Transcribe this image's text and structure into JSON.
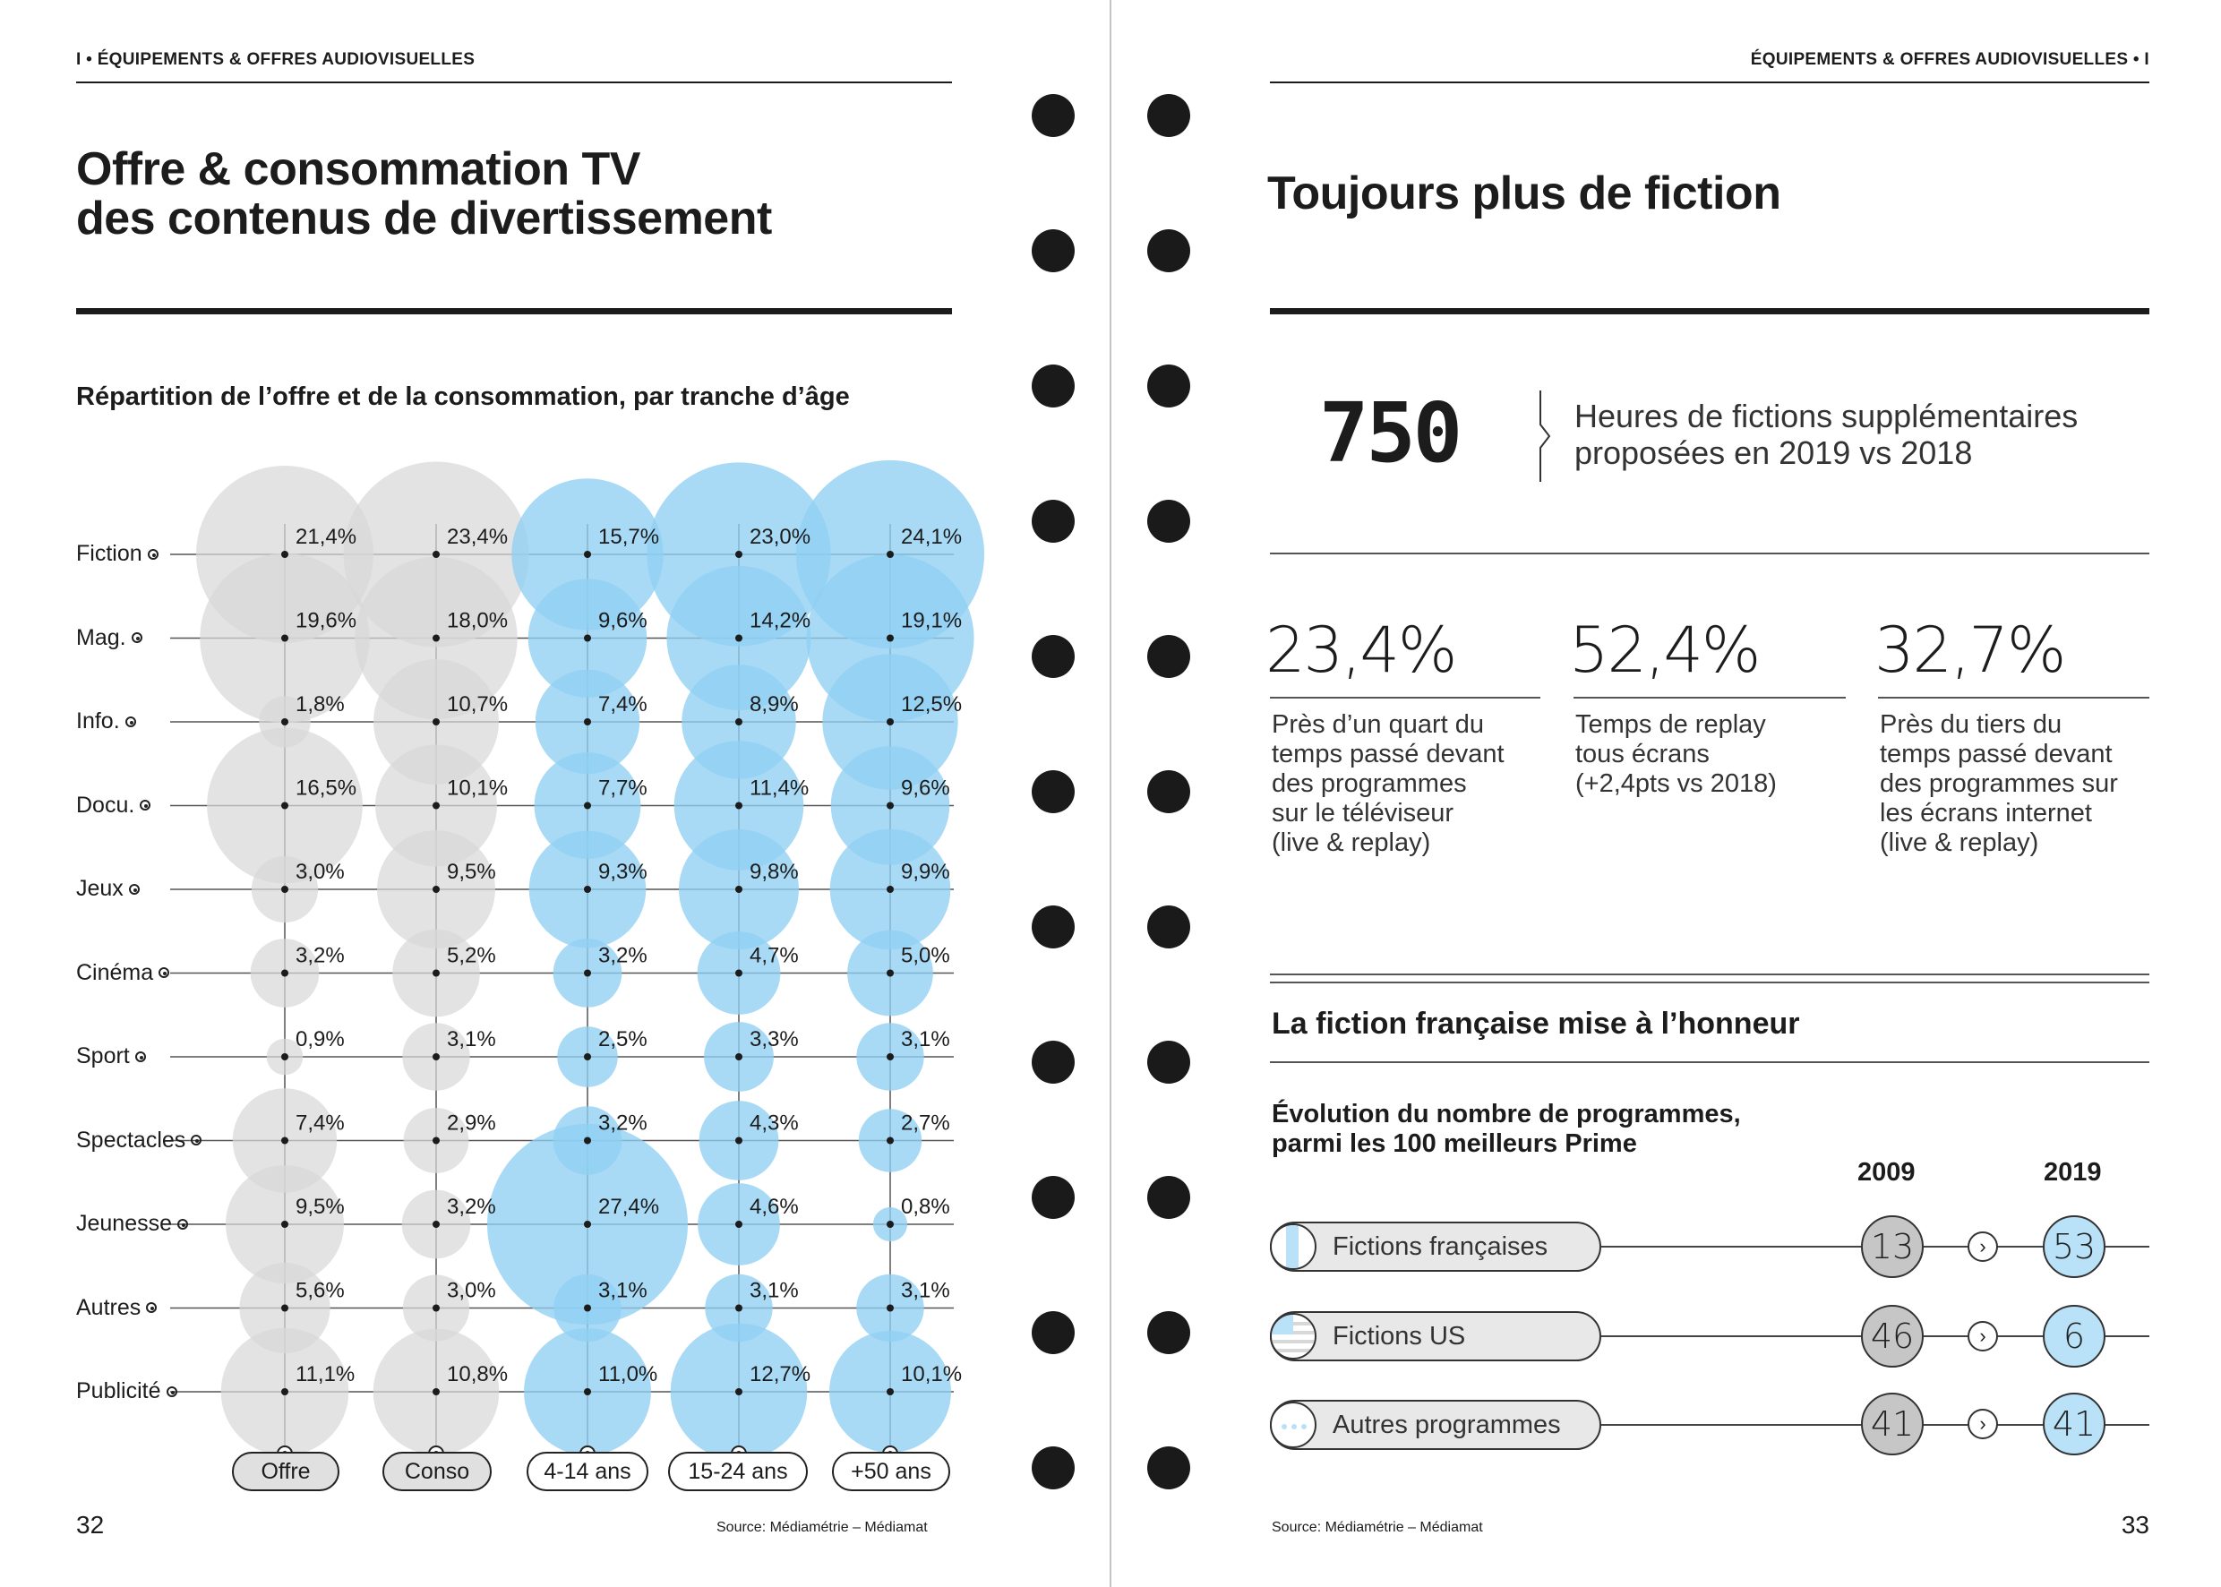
{
  "left_page": {
    "header": "I • ÉQUIPEMENTS & OFFRES AUDIOVISUELLES",
    "title_line1": "Offre & consommation TV",
    "title_line2": "des contenus de divertissement",
    "chart_title": "Répartition de l’offre et de la consommation, par tranche d’âge",
    "page_number": "32",
    "source": "Source: Médiamétrie – Médiamat"
  },
  "right_page": {
    "header": "ÉQUIPEMENTS & OFFRES AUDIOVISUELLES • I",
    "title": "Toujours plus de fiction",
    "big_number": "750",
    "big_text_line1": "Heures de fictions supplémentaires",
    "big_text_line2": "proposées en 2019 vs 2018",
    "stats": [
      {
        "value": "23,4%",
        "lines": [
          "Près d’un quart du",
          "temps passé devant",
          "des programmes",
          "sur le téléviseur",
          "(live & replay)"
        ]
      },
      {
        "value": "52,4%",
        "lines": [
          "Temps de replay",
          "tous écrans",
          "(+2,4pts vs 2018)"
        ]
      },
      {
        "value": "32,7%",
        "lines": [
          "Près du tiers du",
          "temps passé devant",
          "des programmes sur",
          "les écrans internet",
          "(live & replay)"
        ]
      }
    ],
    "section_title": "La fiction française mise à l’honneur",
    "evolution_title_line1": "Évolution du nombre de programmes,",
    "evolution_title_line2": "parmi les 100 meilleurs Prime",
    "year_a": "2009",
    "year_b": "2019",
    "programs": [
      {
        "label": "Fictions françaises",
        "v2009": "13",
        "v2019": "53",
        "icon": "french-flag-icon"
      },
      {
        "label": "Fictions US",
        "v2009": "46",
        "v2019": "6",
        "icon": "us-flag-icon"
      },
      {
        "label": "Autres programmes",
        "v2009": "41",
        "v2019": "41",
        "icon": "dots-icon"
      }
    ],
    "page_number": "33",
    "source": "Source: Médiamétrie – Médiamat"
  },
  "colors": {
    "grey_bubble": "#d8d8d8",
    "blue_bubble": "#8fd0f4",
    "accent_blue": "#4fb8ee",
    "ink": "#1c1c1c"
  },
  "chart_data": {
    "type": "bubble",
    "title": "Répartition de l’offre et de la consommation, par tranche d’âge",
    "columns": [
      "Offre",
      "Conso",
      "4-14 ans",
      "15-24 ans",
      "+50 ans"
    ],
    "categories": [
      "Fiction",
      "Mag.",
      "Info.",
      "Docu.",
      "Jeux",
      "Cinéma",
      "Sport",
      "Spectacles",
      "Jeunesse",
      "Autres",
      "Publicité"
    ],
    "series": [
      {
        "name": "Offre",
        "values": [
          21.4,
          19.6,
          1.8,
          16.5,
          3.0,
          3.2,
          0.9,
          7.4,
          9.5,
          5.6,
          11.1
        ],
        "labels": [
          "21,4%",
          "19,6%",
          "1,8%",
          "16,5%",
          "3,0%",
          "3,2%",
          "0,9%",
          "7,4%",
          "9,5%",
          "5,6%",
          "11,1%"
        ]
      },
      {
        "name": "Conso",
        "values": [
          23.4,
          18.0,
          10.7,
          10.1,
          9.5,
          5.2,
          3.1,
          2.9,
          3.2,
          3.0,
          10.8
        ],
        "labels": [
          "23,4%",
          "18,0%",
          "10,7%",
          "10,1%",
          "9,5%",
          "5,2%",
          "3,1%",
          "2,9%",
          "3,2%",
          "3,0%",
          "10,8%"
        ]
      },
      {
        "name": "4-14 ans",
        "values": [
          15.7,
          9.6,
          7.4,
          7.7,
          9.3,
          3.2,
          2.5,
          3.2,
          27.4,
          3.1,
          11.0
        ],
        "labels": [
          "15,7%",
          "9,6%",
          "7,4%",
          "7,7%",
          "9,3%",
          "3,2%",
          "2,5%",
          "3,2%",
          "27,4%",
          "3,1%",
          "11,0%"
        ]
      },
      {
        "name": "15-24 ans",
        "values": [
          23.0,
          14.2,
          8.9,
          11.4,
          9.8,
          4.7,
          3.3,
          4.3,
          4.6,
          3.1,
          12.7
        ],
        "labels": [
          "23,0%",
          "14,2%",
          "8,9%",
          "11,4%",
          "9,8%",
          "4,7%",
          "3,3%",
          "4,3%",
          "4,6%",
          "3,1%",
          "12,7%"
        ]
      },
      {
        "name": "+50 ans",
        "values": [
          24.1,
          19.1,
          12.5,
          9.6,
          9.9,
          5.0,
          3.1,
          2.7,
          0.8,
          3.1,
          10.1
        ],
        "labels": [
          "24,1%",
          "19,1%",
          "12,5%",
          "9,6%",
          "9,9%",
          "5,0%",
          "3,1%",
          "2,7%",
          "0,8%",
          "3,1%",
          "10,1%"
        ]
      }
    ]
  }
}
